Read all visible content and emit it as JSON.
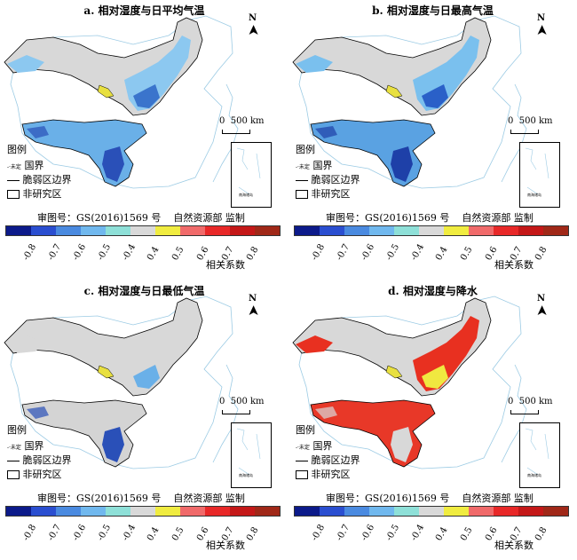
{
  "panels": [
    {
      "title": "a. 相对湿度与日平均气温",
      "fill": {
        "north": "#8cc8f0",
        "northDeep": "#3a74cc",
        "south": "#6ab0e8",
        "southDeep": "#2a50b8",
        "accent": "#e8e040"
      }
    },
    {
      "title": "b. 相对湿度与日最高气温",
      "fill": {
        "north": "#7ac0ee",
        "northDeep": "#2a60c8",
        "south": "#5aa2e2",
        "southDeep": "#1e40a8",
        "accent": "#e8e040"
      }
    },
    {
      "title": "c. 相对湿度与日最低气温",
      "fill": {
        "north": "#d8d8d8",
        "northDeep": "#6ab0e8",
        "south": "#d4d4d4",
        "southDeep": "#2a50b8",
        "accent": "#e8e040"
      }
    },
    {
      "title": "d. 相对湿度与降水",
      "fill": {
        "north": "#e83020",
        "northDeep": "#f0e840",
        "south": "#e83828",
        "southDeep": "#d8d8d8",
        "accent": "#e8e040"
      }
    }
  ],
  "north_label": "N",
  "scale": {
    "zero": "0",
    "dist": "500 km"
  },
  "legend": {
    "title": "图例",
    "items": [
      {
        "symbol": "-·未定",
        "label": "国界"
      },
      {
        "symbol": "line",
        "label": "脆弱区边界"
      },
      {
        "symbol": "box",
        "label": "非研究区"
      }
    ]
  },
  "approval": {
    "number": "审图号：GS(2016)1569 号",
    "agency": "自然资源部 监制"
  },
  "inset_label": "南海诸岛",
  "colorbar": {
    "title": "相关系数",
    "colors": [
      "#0c1a8a",
      "#2a4ed0",
      "#4a8ae0",
      "#70b8ee",
      "#8ee0d8",
      "#d9d9d9",
      "#f0ec40",
      "#f06a6a",
      "#e82828",
      "#c41818",
      "#a02818"
    ],
    "ticks": [
      "-0.8",
      "-0.7",
      "-0.6",
      "-0.5",
      "-0.4",
      "0.4",
      "0.5",
      "0.6",
      "0.7",
      "0.8"
    ]
  }
}
